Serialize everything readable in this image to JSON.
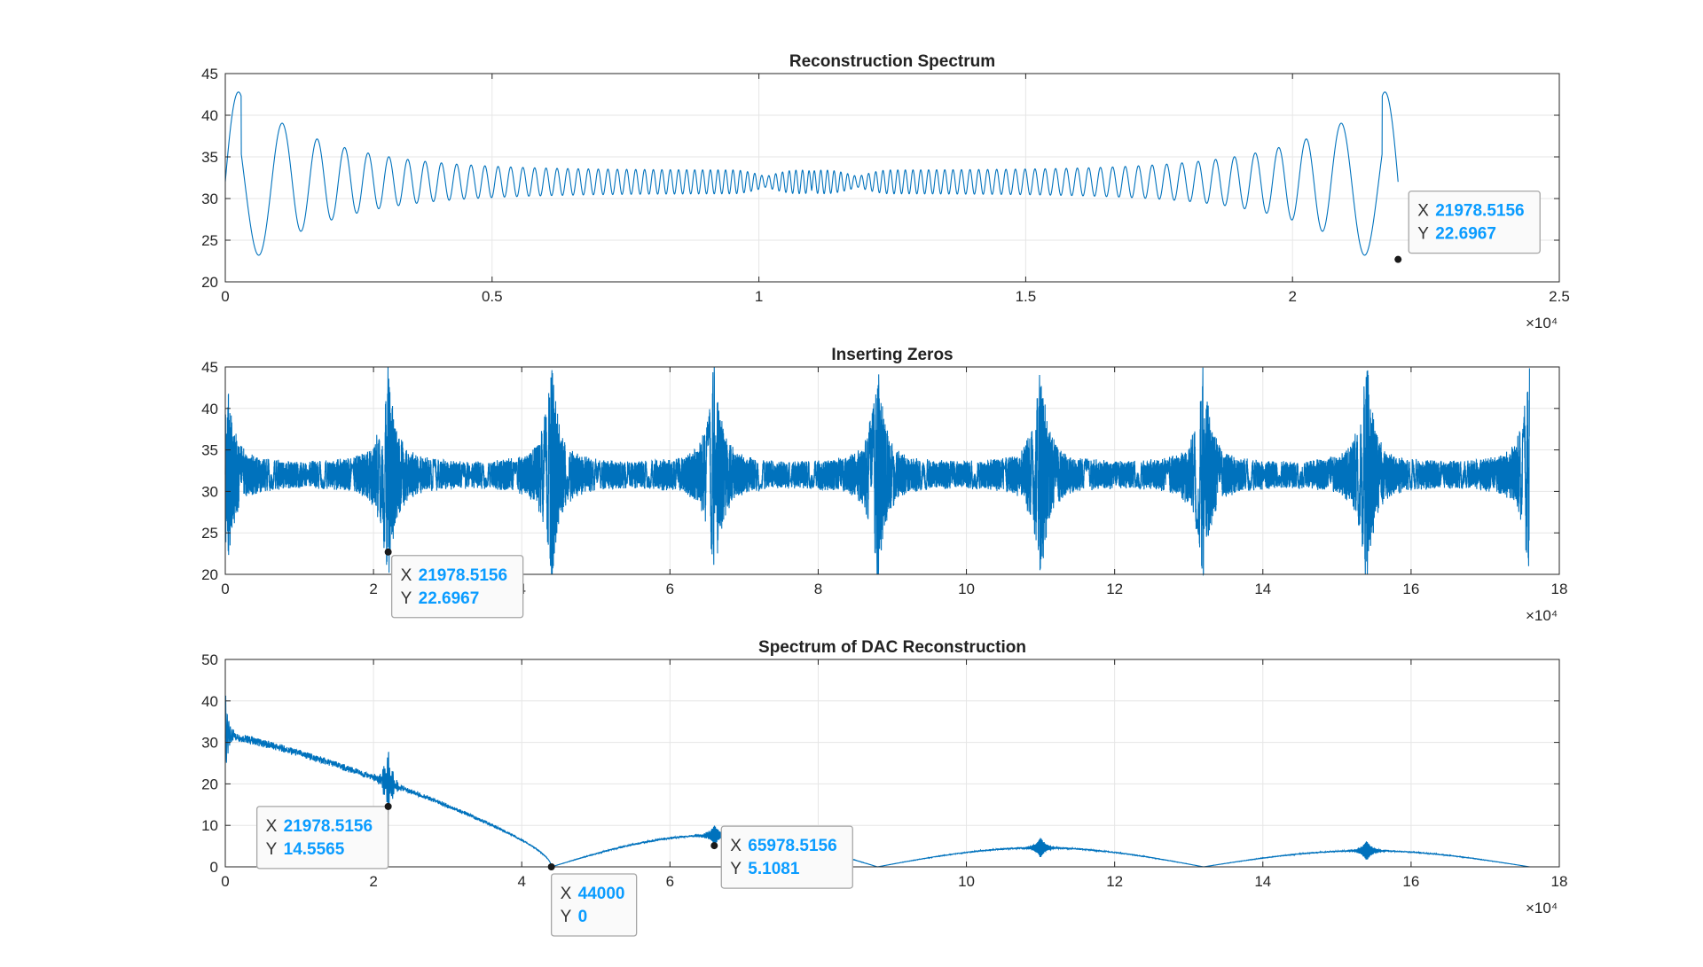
{
  "colors": {
    "line": "#0072bd",
    "grid": "#e6e6e6",
    "axis": "#262626",
    "tip_value": "#0a9cff"
  },
  "chart_data": [
    {
      "type": "line",
      "title": "Reconstruction Spectrum",
      "xlabel": "",
      "ylabel": "",
      "xlim": [
        0,
        25000
      ],
      "ylim": [
        20,
        45
      ],
      "x_ticks": [
        0,
        5000,
        10000,
        15000,
        20000,
        25000
      ],
      "x_tick_labels": [
        "0",
        "0.5",
        "1",
        "1.5",
        "2",
        "2.5"
      ],
      "y_ticks": [
        20,
        25,
        30,
        35,
        40,
        45
      ],
      "y_tick_labels": [
        "20",
        "25",
        "30",
        "35",
        "40",
        "45"
      ],
      "x_exponent": "×10⁴",
      "grid": true,
      "series": [
        {
          "x_range": [
            0,
            21978.5156
          ],
          "y_start": 22.7,
          "y_end": 22.6967,
          "peak": 43.2,
          "trough": 24.5,
          "baseline": 32
        }
      ],
      "datatips": [
        {
          "x": 21978.5156,
          "y": 22.6967,
          "x_label": "X",
          "y_label": "Y",
          "x_text": "21978.5156",
          "y_text": "22.6967"
        }
      ]
    },
    {
      "type": "line",
      "title": "Inserting Zeros",
      "xlabel": "",
      "ylabel": "",
      "xlim": [
        0,
        180000
      ],
      "ylim": [
        20,
        45
      ],
      "x_ticks": [
        0,
        20000,
        40000,
        60000,
        80000,
        100000,
        120000,
        140000,
        160000,
        180000
      ],
      "x_tick_labels": [
        "0",
        "2",
        "4",
        "6",
        "8",
        "10",
        "12",
        "14",
        "16",
        "18"
      ],
      "y_ticks": [
        20,
        25,
        30,
        35,
        40,
        45
      ],
      "y_tick_labels": [
        "20",
        "25",
        "30",
        "35",
        "40",
        "45"
      ],
      "x_exponent": "×10⁴",
      "grid": true,
      "series": [
        {
          "x_range": [
            0,
            175978.5
          ],
          "period": 22000,
          "peak": 43.2,
          "trough": 22.7,
          "baseline": 32
        }
      ],
      "datatips": [
        {
          "x": 21978.5156,
          "y": 22.6967,
          "x_label": "X",
          "y_label": "Y",
          "x_text": "21978.5156",
          "y_text": "22.6967"
        }
      ]
    },
    {
      "type": "line",
      "title": "Spectrum of DAC Reconstruction",
      "xlabel": "",
      "ylabel": "",
      "xlim": [
        0,
        180000
      ],
      "ylim": [
        0,
        50
      ],
      "x_ticks": [
        0,
        20000,
        40000,
        60000,
        80000,
        100000,
        120000,
        140000,
        160000,
        180000
      ],
      "x_tick_labels": [
        "0",
        "2",
        "4",
        "6",
        "8",
        "10",
        "12",
        "14",
        "16",
        "18"
      ],
      "y_ticks": [
        0,
        10,
        20,
        30,
        40,
        50
      ],
      "y_tick_labels": [
        "0",
        "10",
        "20",
        "30",
        "40",
        "50"
      ],
      "x_exponent": "×10⁴",
      "grid": true,
      "series": [
        {
          "x_range": [
            0,
            176000
          ],
          "nulls": [
            44000,
            88000,
            132000,
            176000
          ],
          "lobe_peaks": [
            32,
            7.6,
            4.6,
            3.9
          ]
        }
      ],
      "datatips": [
        {
          "x": 21978.5156,
          "y": 14.5565,
          "x_label": "X",
          "y_label": "Y",
          "x_text": "21978.5156",
          "y_text": "14.5565"
        },
        {
          "x": 44000,
          "y": 0,
          "x_label": "X",
          "y_label": "Y",
          "x_text": "44000",
          "y_text": "0"
        },
        {
          "x": 65978.5156,
          "y": 5.1081,
          "x_label": "X",
          "y_label": "Y",
          "x_text": "65978.5156",
          "y_text": "5.1081"
        }
      ]
    }
  ]
}
